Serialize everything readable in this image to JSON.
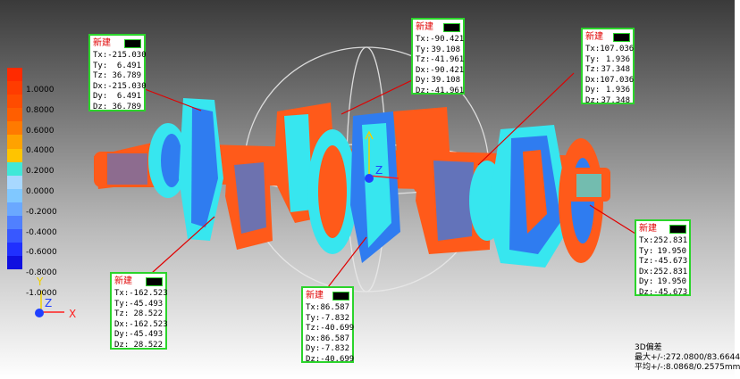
{
  "legend": {
    "colors": [
      "#ff2a00",
      "#ff3c00",
      "#ff4c00",
      "#ff5e00",
      "#ff7a00",
      "#ffa200",
      "#ffc400",
      "#40e8d8",
      "#a8d8ff",
      "#80c8ff",
      "#6aa8ff",
      "#5080ff",
      "#3858ff",
      "#2030ff",
      "#1010e0"
    ],
    "labels": [
      "1.0000",
      "0.8000",
      "0.6000",
      "0.4000",
      "0.2000",
      "0.0000",
      "-0.2000",
      "-0.4000",
      "-0.6000",
      "-0.8000",
      "-1.0000"
    ]
  },
  "callouts": [
    {
      "id": "c1",
      "title": "新建",
      "rows": [
        {
          "k": "Tx:",
          "v": "-215.030"
        },
        {
          "k": "Ty:",
          "v": "6.491"
        },
        {
          "k": "Tz:",
          "v": "36.789"
        },
        {
          "k": "Dx:",
          "v": "-215.030"
        },
        {
          "k": "Dy:",
          "v": "6.491"
        },
        {
          "k": "Dz:",
          "v": "36.789"
        }
      ]
    },
    {
      "id": "c2",
      "title": "新建",
      "rows": [
        {
          "k": "Tx:",
          "v": "-90.421"
        },
        {
          "k": "Ty:",
          "v": "39.108"
        },
        {
          "k": "Tz:",
          "v": "-41.961"
        },
        {
          "k": "Dx:",
          "v": "-90.421"
        },
        {
          "k": "Dy:",
          "v": "39.108"
        },
        {
          "k": "Dz:",
          "v": "-41.961"
        }
      ]
    },
    {
      "id": "c3",
      "title": "新建",
      "rows": [
        {
          "k": "Tx:",
          "v": "107.036"
        },
        {
          "k": "Ty:",
          "v": "1.936"
        },
        {
          "k": "Tz:",
          "v": "37.348"
        },
        {
          "k": "Dx:",
          "v": "107.036"
        },
        {
          "k": "Dy:",
          "v": "1.936"
        },
        {
          "k": "Dz:",
          "v": "37.348"
        }
      ]
    },
    {
      "id": "c4",
      "title": "新建",
      "rows": [
        {
          "k": "Tx:",
          "v": "-162.523"
        },
        {
          "k": "Ty:",
          "v": "-45.493"
        },
        {
          "k": "Tz:",
          "v": "28.522"
        },
        {
          "k": "Dx:",
          "v": "-162.523"
        },
        {
          "k": "Dy:",
          "v": "-45.493"
        },
        {
          "k": "Dz:",
          "v": "28.522"
        }
      ]
    },
    {
      "id": "c5",
      "title": "新建",
      "rows": [
        {
          "k": "Tx:",
          "v": "86.587"
        },
        {
          "k": "Ty:",
          "v": "-7.832"
        },
        {
          "k": "Tz:",
          "v": "-40.699"
        },
        {
          "k": "Dx:",
          "v": "86.587"
        },
        {
          "k": "Dy:",
          "v": "-7.832"
        },
        {
          "k": "Dz:",
          "v": "-40.699"
        }
      ]
    },
    {
      "id": "c6",
      "title": "新建",
      "rows": [
        {
          "k": "Tx:",
          "v": "252.831"
        },
        {
          "k": "Ty:",
          "v": "19.950"
        },
        {
          "k": "Tz:",
          "v": "-45.673"
        },
        {
          "k": "Dx:",
          "v": "252.831"
        },
        {
          "k": "Dy:",
          "v": "19.950"
        },
        {
          "k": "Dz:",
          "v": "-45.673"
        }
      ]
    }
  ],
  "axes": {
    "x": "X",
    "y": "Y",
    "z": "Z",
    "x_color": "#ff2020",
    "y_color": "#f0d000",
    "z_color": "#2040ff"
  },
  "stats": {
    "line1": "3D偏差",
    "line2": "最大+/-:272.0800/83.6644",
    "line3": "平均+/-:8.0868/0.2575mm"
  },
  "colors": {
    "positive": "#ff5a1a",
    "negative_light": "#37e6ef",
    "negative_mid": "#2f7cf0",
    "leader": "#e00000",
    "callout_border": "#2bd42b"
  }
}
